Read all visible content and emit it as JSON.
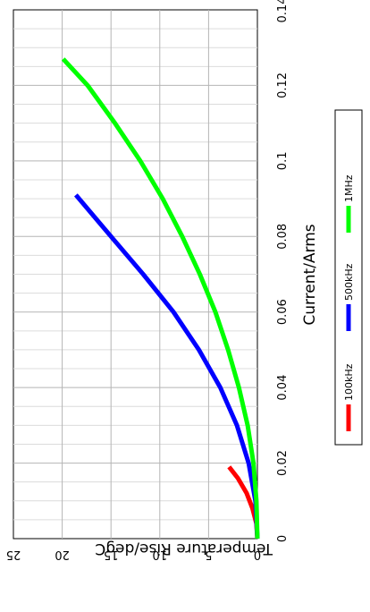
{
  "chart_data": {
    "type": "line",
    "xlabel": "Current/Arms",
    "ylabel": "Temperature Rise/degC",
    "xlim": [
      0,
      0.14
    ],
    "ylim": [
      0,
      25
    ],
    "x_ticks": [
      "0",
      "0.02",
      "0.04",
      "0.06",
      "0.08",
      "0.1",
      "0.12",
      "0.14"
    ],
    "y_ticks": [
      "0",
      "5",
      "10",
      "15",
      "20",
      "25"
    ],
    "grid": true,
    "orientation": "rotated 90° clockwise",
    "legend_position": "bottom-right",
    "series": [
      {
        "name": "100kHz",
        "color": "#ff0000",
        "x": [
          0.0,
          0.004,
          0.008,
          0.012,
          0.016,
          0.019
        ],
        "y": [
          0.0,
          0.1,
          0.5,
          1.1,
          2.0,
          2.9
        ]
      },
      {
        "name": "500kHz",
        "color": "#0000ff",
        "x": [
          0.0,
          0.01,
          0.02,
          0.03,
          0.04,
          0.05,
          0.06,
          0.07,
          0.08,
          0.091
        ],
        "y": [
          0.0,
          0.2,
          0.9,
          2.1,
          3.8,
          6.0,
          8.6,
          11.7,
          15.0,
          18.6
        ]
      },
      {
        "name": "1MHz",
        "color": "#00ff00",
        "x": [
          0.0,
          0.01,
          0.02,
          0.03,
          0.04,
          0.05,
          0.06,
          0.07,
          0.08,
          0.09,
          0.1,
          0.11,
          0.12,
          0.127
        ],
        "y": [
          0.0,
          0.1,
          0.4,
          1.0,
          1.9,
          3.0,
          4.3,
          5.9,
          7.7,
          9.7,
          12.0,
          14.6,
          17.4,
          19.9
        ]
      }
    ]
  }
}
